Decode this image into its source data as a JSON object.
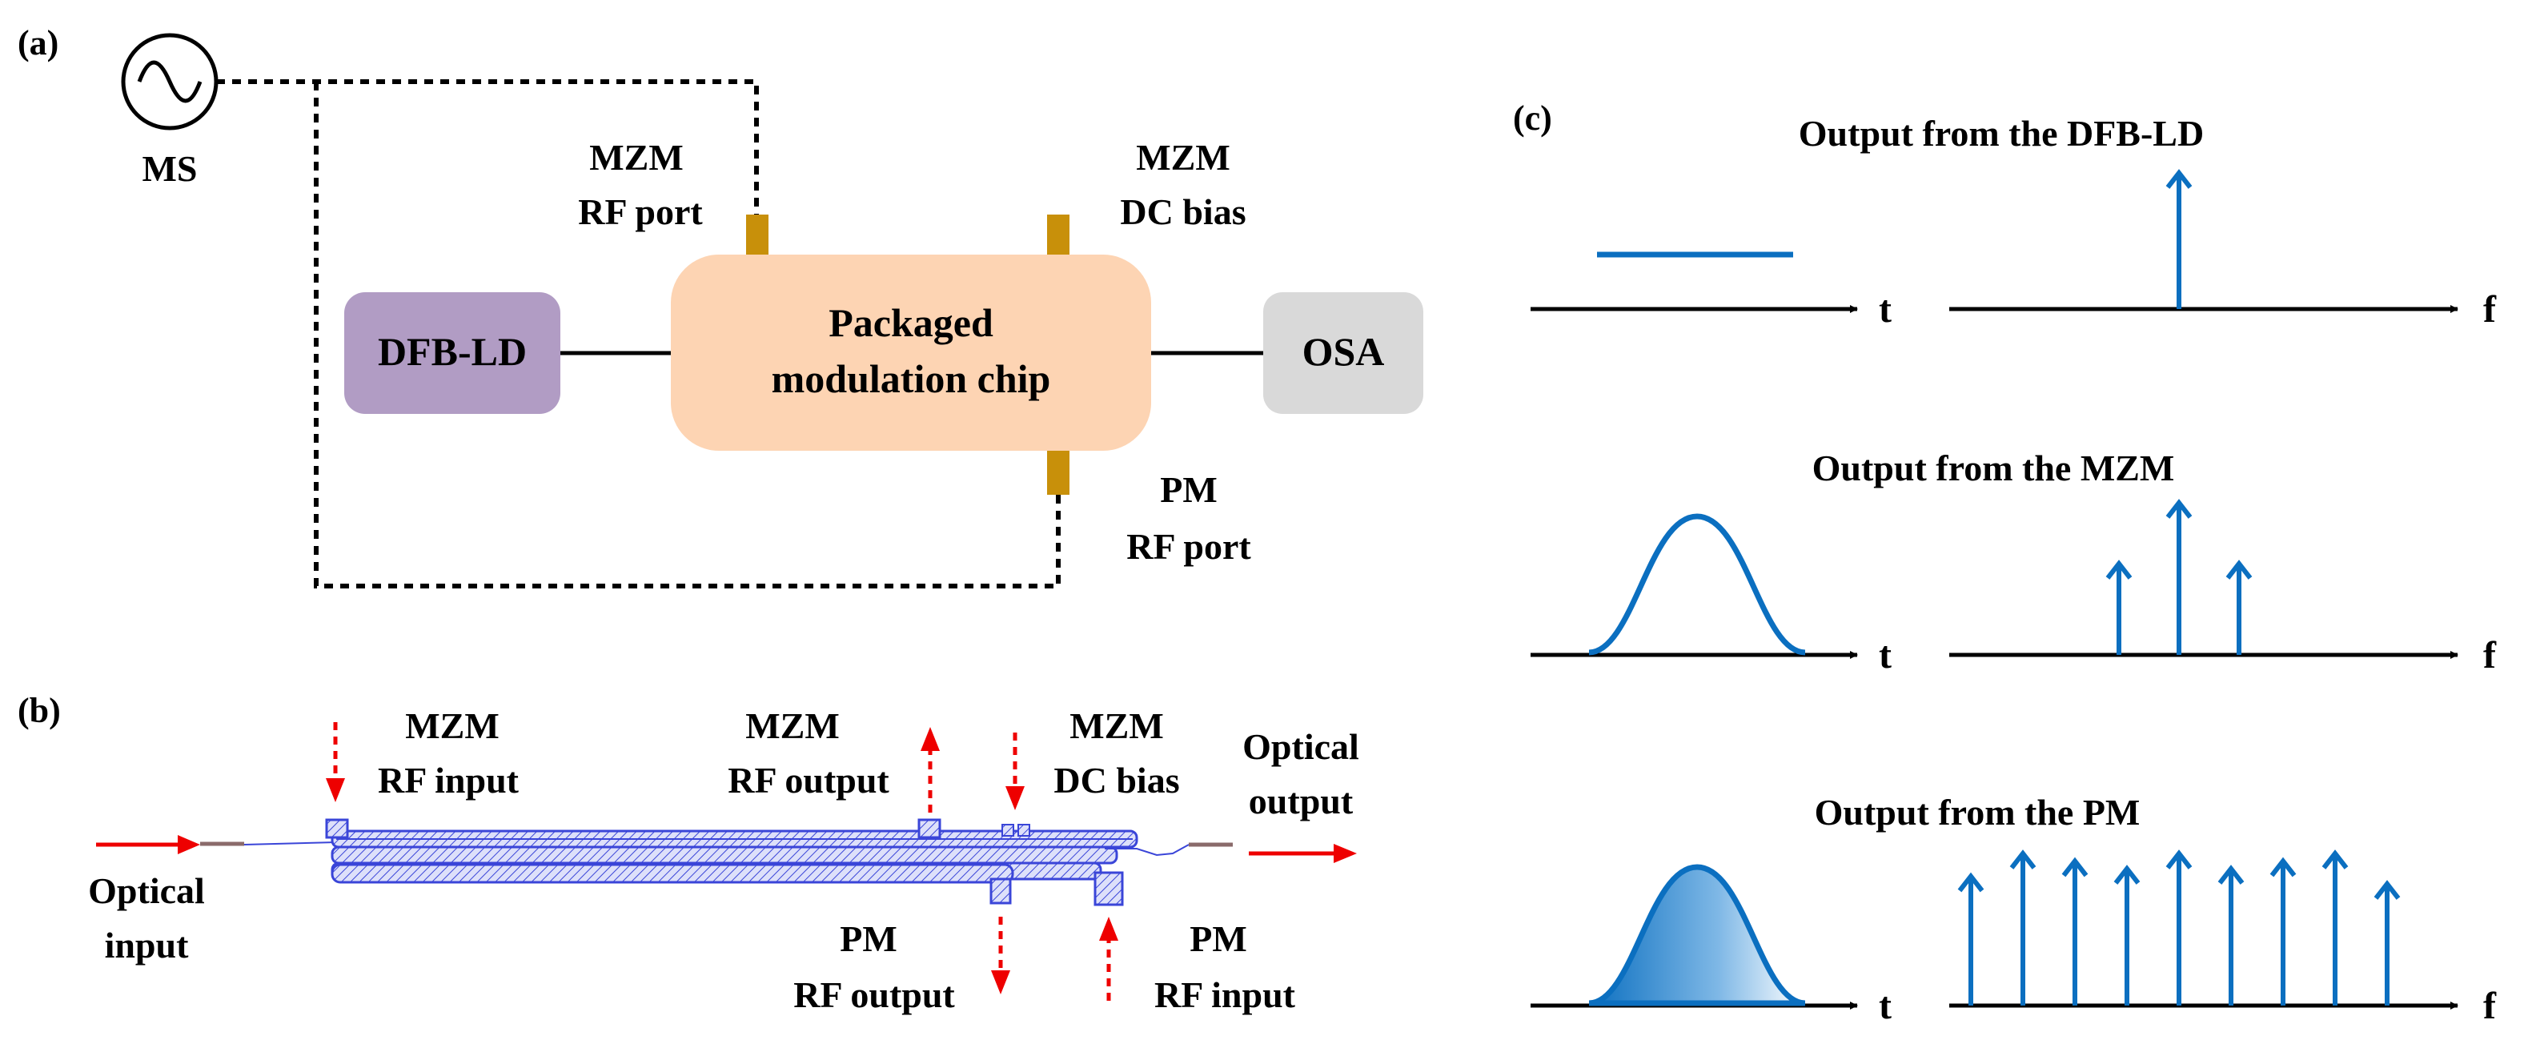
{
  "colors": {
    "dfb_fill": "#b19cc4",
    "chip_fill": "#fdd4b3",
    "osa_fill": "#d9d9d9",
    "port_fill": "#c8900a",
    "signal_blue": "#0b6fc0",
    "arrow_red": "#ee0000",
    "waveguide_blue": "#3a45d8"
  },
  "panel_a": {
    "label": "(a)",
    "ms_label": "MS",
    "ms_icon": "sine-source-icon",
    "mzm_rf_port_line1": "MZM",
    "mzm_rf_port_line2": "RF port",
    "mzm_dc_bias_line1": "MZM",
    "mzm_dc_bias_line2": "DC bias",
    "dfb_ld": "DFB-LD",
    "chip_line1": "Packaged",
    "chip_line2": "modulation chip",
    "osa": "OSA",
    "pm_rf_port_line1": "PM",
    "pm_rf_port_line2": "RF port"
  },
  "panel_b": {
    "label": "(b)",
    "mzm_rf_input_line1": "MZM",
    "mzm_rf_input_line2": "RF input",
    "mzm_rf_output_line1": "MZM",
    "mzm_rf_output_line2": "RF output",
    "mzm_dc_bias_line1": "MZM",
    "mzm_dc_bias_line2": "DC bias",
    "optical_output_line1": "Optical",
    "optical_output_line2": "output",
    "optical_input_line1": "Optical",
    "optical_input_line2": "input",
    "pm_rf_output_line1": "PM",
    "pm_rf_output_line2": "RF output",
    "pm_rf_input_line1": "PM",
    "pm_rf_input_line2": "RF input"
  },
  "panel_c": {
    "label": "(c)",
    "row1_title": "Output from the DFB-LD",
    "row2_title": "Output from the MZM",
    "row3_title": "Output from the PM",
    "t_axis": "t",
    "f_axis": "f",
    "row1_spectrum": [
      1.0
    ],
    "row2_spectrum": [
      0.6,
      1.0,
      0.6
    ],
    "row3_spectrum": [
      0.85,
      1.0,
      0.95,
      0.9,
      1.0,
      0.9,
      0.95,
      1.0,
      0.8
    ]
  }
}
